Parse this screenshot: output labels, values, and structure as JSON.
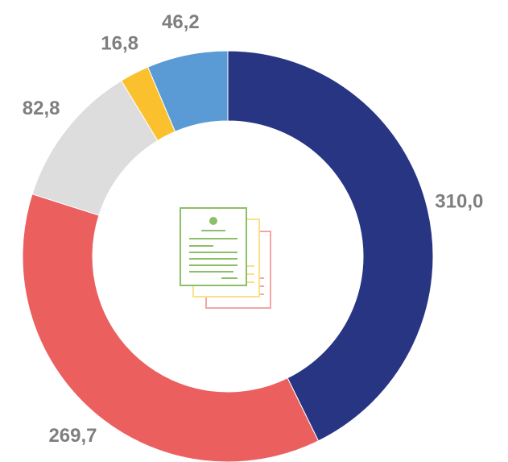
{
  "chart_data": {
    "type": "donut",
    "values": [
      310.0,
      269.7,
      82.8,
      16.8,
      46.2
    ],
    "value_labels": [
      "310,0",
      "269,7",
      "82,8",
      "16,8",
      "46,2"
    ],
    "colors": [
      "#283583",
      "#eb5f5f",
      "#dddddd",
      "#fbc02d",
      "#5b9bd5"
    ]
  }
}
